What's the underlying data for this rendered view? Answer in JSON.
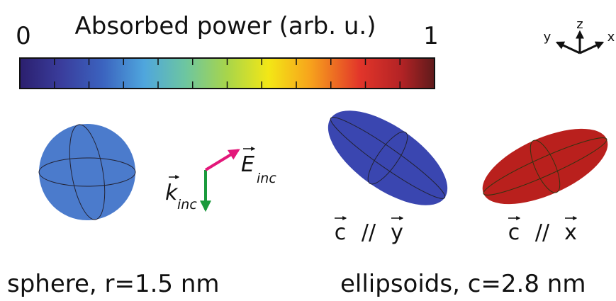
{
  "colorbar": {
    "label": "Absorbed power (arb. u.)",
    "min": 0,
    "max": 1
  },
  "axes": {
    "z": "z",
    "y": "y",
    "x": "x"
  },
  "incident": {
    "e_field": "E",
    "k_vector": "k",
    "subscript": "inc"
  },
  "ellipsoid_labels": [
    {
      "vector": "c",
      "sep": "//",
      "axis": "y"
    },
    {
      "vector": "c",
      "sep": "//",
      "axis": "x"
    }
  ],
  "captions": {
    "sphere": "sphere, r=1.5 nm",
    "ellipsoids": "ellipsoids, c=2.8 nm"
  }
}
